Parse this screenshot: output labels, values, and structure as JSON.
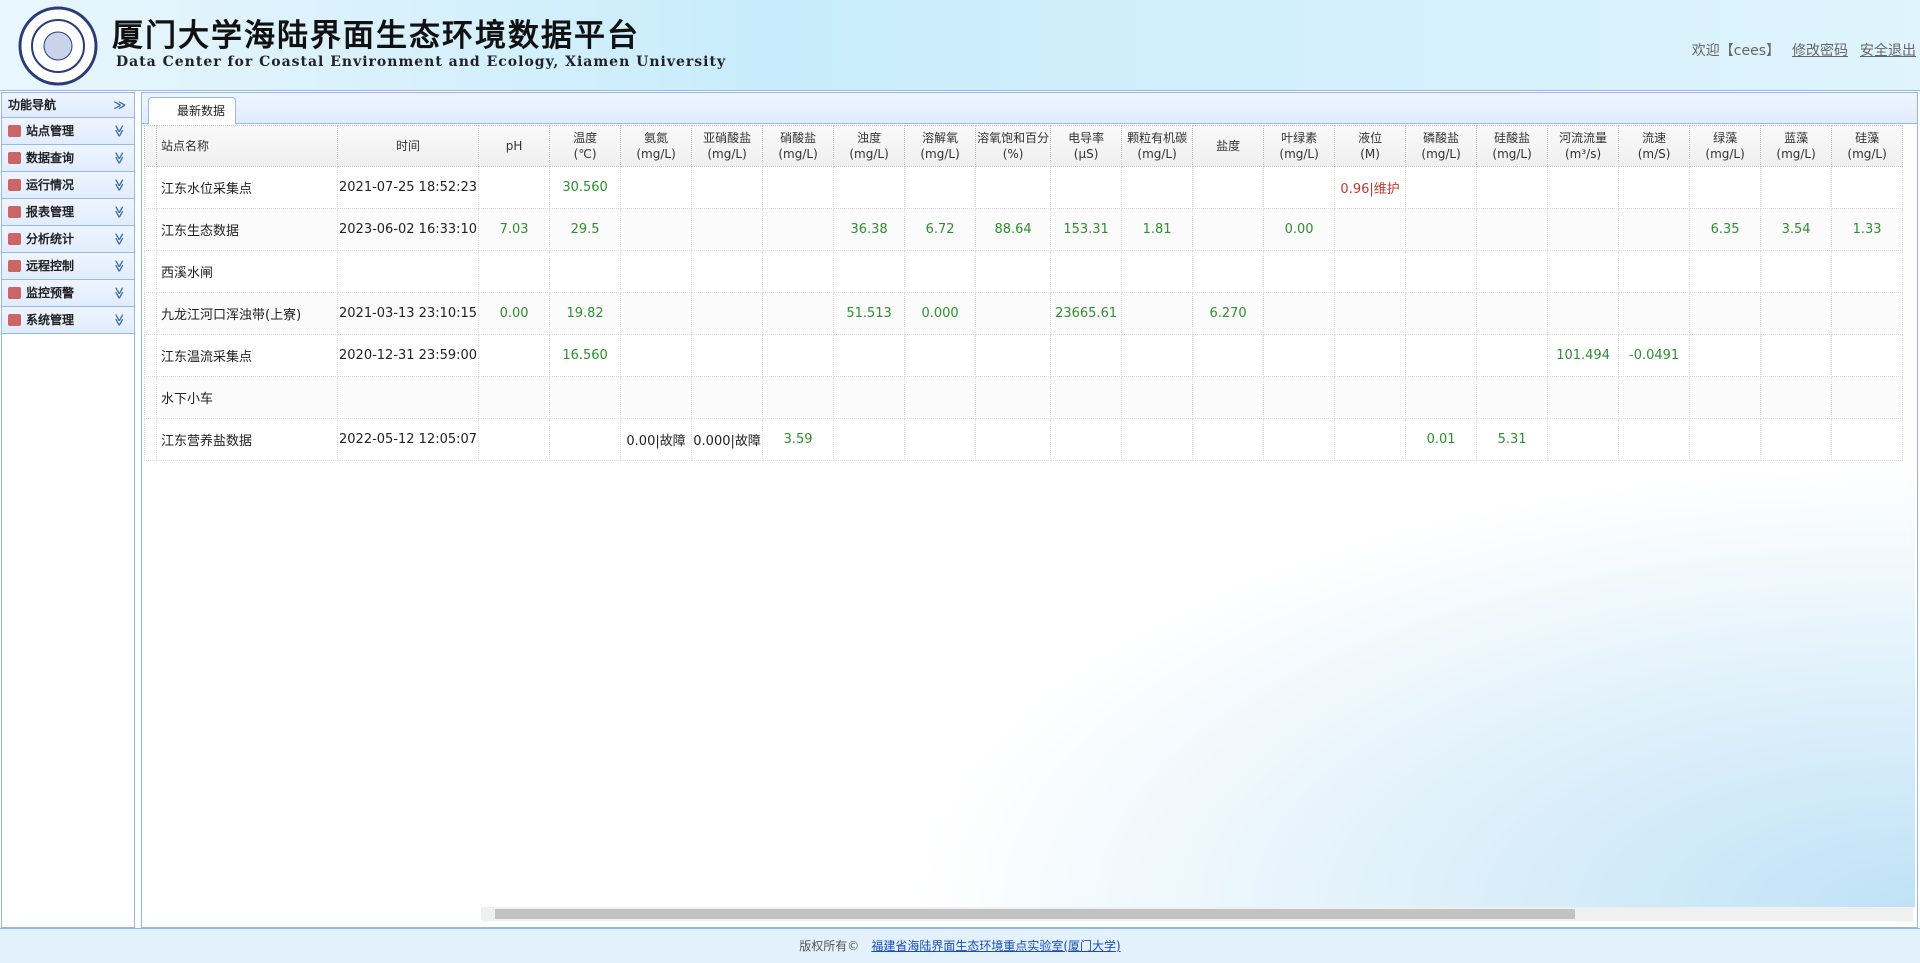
{
  "header": {
    "title": "厦门大学海陆界面生态环境数据平台",
    "subtitle": "Data Center for Coastal Environment and Ecology, Xiamen University",
    "welcome": "欢迎【cees】",
    "links": [
      "修改密码",
      "安全退出"
    ]
  },
  "sidebar": {
    "title": "功能导航",
    "items": [
      "站点管理",
      "数据查询",
      "运行情况",
      "报表管理",
      "分析统计",
      "远程控制",
      "监控预警",
      "系统管理"
    ]
  },
  "tab": "最新数据",
  "table": {
    "columns": [
      {
        "name": "站点名称",
        "unit": null
      },
      {
        "name": "时间",
        "unit": null
      },
      {
        "name": "pH",
        "unit": null
      },
      {
        "name": "温度",
        "unit": "(℃)"
      },
      {
        "name": "氨氮",
        "unit": "(mg/L)"
      },
      {
        "name": "亚硝酸盐",
        "unit": "(mg/L)"
      },
      {
        "name": "硝酸盐",
        "unit": "(mg/L)"
      },
      {
        "name": "浊度",
        "unit": "(mg/L)"
      },
      {
        "name": "溶解氧",
        "unit": "(mg/L)"
      },
      {
        "name": "溶氧饱和百分",
        "unit": "(%)"
      },
      {
        "name": "电导率",
        "unit": "(μS)"
      },
      {
        "name": "颗粒有机碳",
        "unit": "(mg/L)"
      },
      {
        "name": "盐度",
        "unit": null
      },
      {
        "name": "叶绿素",
        "unit": "(mg/L)"
      },
      {
        "name": "液位",
        "unit": "(M)"
      },
      {
        "name": "磷酸盐",
        "unit": "(mg/L)"
      },
      {
        "name": "硅酸盐",
        "unit": "(mg/L)"
      },
      {
        "name": "河流流量",
        "unit": "(m³/s)"
      },
      {
        "name": "流速",
        "unit": "(m/S)"
      },
      {
        "name": "绿藻",
        "unit": "(mg/L)"
      },
      {
        "name": "蓝藻",
        "unit": "(mg/L)"
      },
      {
        "name": "硅藻",
        "unit": "(mg/L)"
      }
    ],
    "rows": [
      [
        "江东水位采集点",
        "2021-07-25 18:52:23",
        null,
        "30.560",
        null,
        null,
        null,
        null,
        null,
        null,
        null,
        null,
        null,
        null,
        "0.96|维护",
        null,
        null,
        null,
        null,
        null,
        null,
        null
      ],
      [
        "江东生态数据",
        "2023-06-02 16:33:10",
        "7.03",
        "29.5",
        null,
        null,
        null,
        "36.38",
        "6.72",
        "88.64",
        "153.31",
        "1.81",
        null,
        "0.00",
        null,
        null,
        null,
        null,
        null,
        "6.35",
        "3.54",
        "1.33"
      ],
      [
        "西溪水闸",
        null,
        null,
        null,
        null,
        null,
        null,
        null,
        null,
        null,
        null,
        null,
        null,
        null,
        null,
        null,
        null,
        null,
        null,
        null,
        null,
        null
      ],
      [
        "九龙江河口浑浊带(上寮)",
        "2021-03-13 23:10:15",
        "0.00",
        "19.82",
        null,
        null,
        null,
        "51.513",
        "0.000",
        null,
        "23665.61",
        null,
        "6.270",
        null,
        null,
        null,
        null,
        null,
        null,
        null,
        null,
        null
      ],
      [
        "江东温流采集点",
        "2020-12-31 23:59:00",
        null,
        "16.560",
        null,
        null,
        null,
        null,
        null,
        null,
        null,
        null,
        null,
        null,
        null,
        null,
        null,
        "101.494",
        "-0.0491",
        null,
        null,
        null
      ],
      [
        "水下小车",
        null,
        null,
        null,
        null,
        null,
        null,
        null,
        null,
        null,
        null,
        null,
        null,
        null,
        null,
        null,
        null,
        null,
        null,
        null,
        null,
        null
      ],
      [
        "江东营养盐数据",
        "2022-05-12 12:05:07",
        null,
        null,
        "0.00|故障",
        "0.000|故障",
        "3.59",
        null,
        null,
        null,
        null,
        null,
        null,
        null,
        null,
        "0.01",
        "5.31",
        null,
        null,
        null,
        null,
        null
      ]
    ]
  },
  "footer": {
    "copyright": "版权所有©",
    "link": "福建省海陆界面生态环境重点实验室(厦门大学)"
  }
}
